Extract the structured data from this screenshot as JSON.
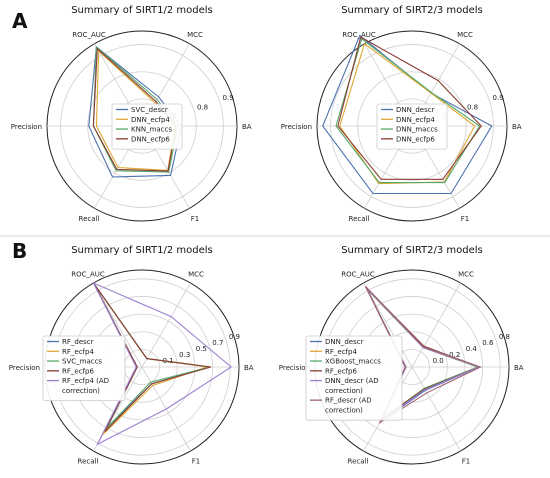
{
  "panels": [
    {
      "letter": "A"
    },
    {
      "letter": "B"
    }
  ],
  "chart_data": [
    {
      "type": "radar",
      "panel": "A",
      "title": "Summary of SIRT1/2 models",
      "axes": [
        "BA",
        "MCC",
        "ROC_AUC",
        "Precision",
        "Recall",
        "F1"
      ],
      "rlim": [
        0.7,
        0.95
      ],
      "rticks": [
        "7",
        "0.8",
        "0.9"
      ],
      "legend_position": "center",
      "grid": true,
      "series": [
        {
          "name": "SVC_descr",
          "color": "#4c72b0",
          "values": [
            0.804,
            0.788,
            0.94,
            0.84,
            0.855,
            0.85
          ]
        },
        {
          "name": "DNN_ecfp4",
          "color": "#dda832",
          "values": [
            0.787,
            0.77,
            0.928,
            0.82,
            0.826,
            0.835
          ]
        },
        {
          "name": "KNN_maccs",
          "color": "#55a868",
          "values": [
            0.795,
            0.78,
            0.94,
            0.828,
            0.836,
            0.84
          ]
        },
        {
          "name": "DNN_ecfp6",
          "color": "#8c3b36",
          "values": [
            0.79,
            0.774,
            0.935,
            0.828,
            0.832,
            0.837
          ]
        }
      ]
    },
    {
      "type": "radar",
      "panel": "A",
      "title": "Summary of SIRT2/3 models",
      "axes": [
        "BA",
        "MCC",
        "ROC_AUC",
        "Precision",
        "Recall",
        "F1"
      ],
      "rlim": [
        0.7,
        0.95
      ],
      "rticks": [
        "7",
        "0.8",
        "0.9"
      ],
      "legend_position": "center",
      "grid": true,
      "series": [
        {
          "name": "DNN_descr",
          "color": "#4c72b0",
          "values": [
            0.91,
            0.8,
            0.975,
            0.935,
            0.905,
            0.905
          ]
        },
        {
          "name": "DNN_ecfp4",
          "color": "#dda832",
          "values": [
            0.865,
            0.8,
            0.95,
            0.89,
            0.875,
            0.87
          ]
        },
        {
          "name": "DNN_maccs",
          "color": "#55a868",
          "values": [
            0.878,
            0.802,
            0.965,
            0.9,
            0.872,
            0.872
          ]
        },
        {
          "name": "DNN_ecfp6",
          "color": "#8c3b36",
          "values": [
            0.882,
            0.838,
            0.97,
            0.895,
            0.862,
            0.862
          ]
        }
      ]
    },
    {
      "type": "radar",
      "panel": "B",
      "title": "Summary of SIRT1/2 models",
      "axes": [
        "BA",
        "MCC",
        "ROC_AUC",
        "Precision",
        "Recall",
        "F1"
      ],
      "rlim": [
        0.0,
        1.0
      ],
      "rticks": [
        "0.1",
        "0.3",
        "0.5",
        "0.7",
        "0.9"
      ],
      "legend_position": "left",
      "grid": true,
      "series": [
        {
          "name": "RF_descr",
          "color": "#4c72b0",
          "values": [
            0.69,
            0.1,
            1.0,
            0.05,
            0.72,
            0.2
          ]
        },
        {
          "name": "RF_ecfp4",
          "color": "#dda832",
          "values": [
            0.67,
            0.1,
            0.98,
            0.05,
            0.8,
            0.22
          ]
        },
        {
          "name": "SVC_maccs",
          "color": "#55a868",
          "values": [
            0.7,
            0.1,
            1.0,
            0.05,
            0.72,
            0.18
          ]
        },
        {
          "name": "RF_ecfp6",
          "color": "#8c3b36",
          "values": [
            0.71,
            0.1,
            0.99,
            0.05,
            0.77,
            0.2
          ]
        },
        {
          "name": "RF_ecfp4 (AD\ncorrection)",
          "color": "#9b7fd0",
          "values": [
            0.92,
            0.6,
            1.0,
            0.06,
            0.92,
            0.5
          ]
        }
      ]
    },
    {
      "type": "radar",
      "panel": "B",
      "title": "Summary of SIRT2/3 models",
      "axes": [
        "BA",
        "MCC",
        "ROC_AUC",
        "Precision",
        "Recall",
        "F1"
      ],
      "rlim": [
        -0.3,
        1.0
      ],
      "rticks": [
        "0.0",
        "0.2",
        "0.4",
        "0.6",
        "0.8"
      ],
      "legend_position": "left",
      "grid": true,
      "series": [
        {
          "name": "DNN_descr",
          "color": "#4c72b0",
          "values": [
            0.6,
            0.02,
            0.92,
            -0.22,
            0.55,
            0.06
          ]
        },
        {
          "name": "RF_ecfp4",
          "color": "#dda832",
          "values": [
            0.58,
            0.0,
            0.9,
            -0.22,
            0.5,
            0.03
          ]
        },
        {
          "name": "XGBoost_maccs",
          "color": "#55a868",
          "values": [
            0.58,
            0.0,
            0.9,
            -0.22,
            0.52,
            0.03
          ]
        },
        {
          "name": "RF_ecfp6",
          "color": "#8c3b36",
          "values": [
            0.6,
            0.02,
            0.93,
            -0.21,
            0.5,
            0.04
          ]
        },
        {
          "name": "DNN_descr (AD\ncorrection)",
          "color": "#9b7fd0",
          "values": [
            0.6,
            0.0,
            0.92,
            -0.22,
            0.53,
            0.05
          ]
        },
        {
          "name": "RF_descr (AD\ncorrection)",
          "color": "#a06070",
          "values": [
            0.62,
            0.01,
            0.95,
            -0.21,
            0.56,
            0.1
          ]
        }
      ]
    }
  ]
}
